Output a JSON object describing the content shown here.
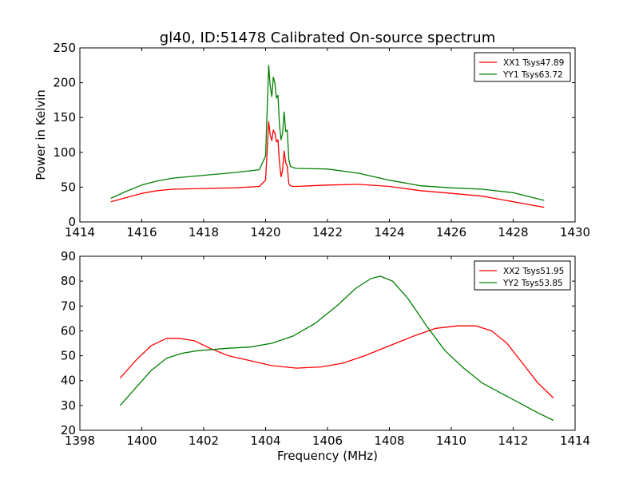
{
  "figure_title": "gl40, ID:51478 Calibrated On-source spectrum",
  "chart_data": [
    {
      "type": "line",
      "ylabel": "Power in Kelvin",
      "xlabel": "",
      "xlim": [
        1414,
        1430
      ],
      "ylim": [
        0,
        250
      ],
      "xticks": [
        "1414",
        "1416",
        "1418",
        "1420",
        "1422",
        "1424",
        "1426",
        "1428",
        "1430"
      ],
      "yticks": [
        "0",
        "50",
        "100",
        "150",
        "200",
        "250"
      ],
      "grid": false,
      "legend_position": "top-right",
      "series": [
        {
          "name": "XX1 Tsys47.89",
          "color": "#ff0000",
          "x": [
            1415.0,
            1415.5,
            1416.0,
            1416.5,
            1417.0,
            1418.0,
            1419.0,
            1419.8,
            1420.0,
            1420.1,
            1420.15,
            1420.2,
            1420.25,
            1420.3,
            1420.35,
            1420.4,
            1420.45,
            1420.5,
            1420.55,
            1420.6,
            1420.65,
            1420.7,
            1420.75,
            1420.8,
            1420.9,
            1421.0,
            1422.0,
            1423.0,
            1424.0,
            1425.0,
            1426.0,
            1427.0,
            1428.0,
            1429.0
          ],
          "y": [
            29,
            35,
            41,
            45,
            47,
            48,
            49,
            51,
            60,
            144,
            125,
            117,
            132,
            128,
            115,
            118,
            85,
            65,
            75,
            102,
            85,
            80,
            55,
            52,
            51,
            51,
            53,
            54,
            51,
            45,
            41,
            37,
            29,
            21
          ]
        },
        {
          "name": "YY1 Tsys63.72",
          "color": "#008000",
          "x": [
            1415.0,
            1415.5,
            1416.0,
            1416.5,
            1417.0,
            1418.0,
            1419.0,
            1419.8,
            1420.0,
            1420.1,
            1420.15,
            1420.2,
            1420.25,
            1420.3,
            1420.35,
            1420.4,
            1420.45,
            1420.5,
            1420.55,
            1420.6,
            1420.65,
            1420.7,
            1420.75,
            1420.8,
            1420.9,
            1421.0,
            1422.0,
            1423.0,
            1424.0,
            1425.0,
            1426.0,
            1427.0,
            1428.0,
            1429.0
          ],
          "y": [
            34,
            44,
            53,
            59,
            63,
            67,
            71,
            75,
            95,
            225,
            195,
            180,
            208,
            200,
            178,
            182,
            140,
            118,
            128,
            158,
            130,
            132,
            90,
            80,
            78,
            77,
            76,
            70,
            60,
            52,
            49,
            47,
            42,
            31
          ]
        }
      ]
    },
    {
      "type": "line",
      "xlabel": "Frequency (MHz)",
      "ylabel": "",
      "xlim": [
        1398,
        1414
      ],
      "ylim": [
        20,
        90
      ],
      "xticks": [
        "1398",
        "1400",
        "1402",
        "1404",
        "1406",
        "1408",
        "1410",
        "1412",
        "1414"
      ],
      "yticks": [
        "20",
        "30",
        "40",
        "50",
        "60",
        "70",
        "80",
        "90"
      ],
      "grid": false,
      "legend_position": "top-right",
      "series": [
        {
          "name": "XX2 Tsys51.95",
          "color": "#ff0000",
          "x": [
            1399.3,
            1399.8,
            1400.3,
            1400.8,
            1401.2,
            1401.7,
            1402.2,
            1402.8,
            1403.5,
            1404.2,
            1405.0,
            1405.8,
            1406.5,
            1407.2,
            1408.0,
            1408.8,
            1409.5,
            1410.2,
            1410.8,
            1411.3,
            1411.8,
            1412.3,
            1412.8,
            1413.3
          ],
          "y": [
            41,
            48,
            54,
            57,
            57,
            56,
            53,
            50,
            48,
            46,
            45,
            45.5,
            47,
            50,
            54,
            58,
            61,
            62,
            62,
            60,
            55,
            47,
            39,
            33
          ]
        },
        {
          "name": "YY2 Tsys53.85",
          "color": "#008000",
          "x": [
            1399.3,
            1399.8,
            1400.3,
            1400.8,
            1401.3,
            1401.8,
            1402.3,
            1402.8,
            1403.5,
            1404.2,
            1404.9,
            1405.6,
            1406.3,
            1406.9,
            1407.4,
            1407.7,
            1408.1,
            1408.6,
            1409.2,
            1409.8,
            1410.4,
            1411.0,
            1411.6,
            1412.2,
            1412.8,
            1413.3
          ],
          "y": [
            30,
            37,
            44,
            49,
            51,
            52,
            52.5,
            53,
            53.5,
            55,
            58,
            63,
            70,
            77,
            81,
            82,
            80,
            73,
            62,
            52,
            45,
            39,
            35,
            31,
            27,
            24
          ]
        }
      ]
    }
  ]
}
